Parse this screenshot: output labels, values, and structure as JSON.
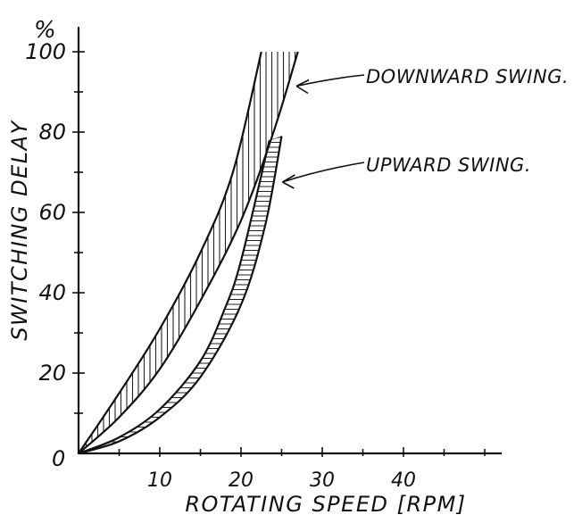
{
  "chart_data": {
    "type": "area",
    "xlabel": "ROTATING SPEED [RPM]",
    "ylabel": "SWITCHING DELAY",
    "y_unit": "%",
    "xlim": [
      0,
      50
    ],
    "ylim": [
      0,
      100
    ],
    "x_ticks": [
      10,
      20,
      30,
      40
    ],
    "y_ticks": [
      20,
      40,
      60,
      80,
      100
    ],
    "origin_label": "0",
    "grid": false,
    "series": [
      {
        "name": "DOWNWARD SWING",
        "hatch": "vertical",
        "upper": {
          "x": [
            0,
            5,
            10,
            15,
            19,
            22.5
          ],
          "y": [
            0,
            15,
            31,
            50,
            70,
            100
          ]
        },
        "lower": {
          "x": [
            0,
            5,
            10,
            15,
            20,
            24,
            27
          ],
          "y": [
            0,
            9,
            21,
            38,
            58,
            80,
            100
          ]
        }
      },
      {
        "name": "UPWARD SWING",
        "hatch": "horizontal",
        "upper": {
          "x": [
            0,
            5,
            10,
            15,
            18,
            20,
            23.5
          ],
          "y": [
            0,
            4,
            11,
            23,
            36,
            48,
            78
          ]
        },
        "lower": {
          "x": [
            0,
            5,
            10,
            15,
            20,
            23,
            25
          ],
          "y": [
            0,
            3,
            9,
            19,
            37,
            57,
            79
          ]
        }
      }
    ],
    "annotations": [
      {
        "text": "DOWNWARD SWING.",
        "points_to": {
          "x": 25.5,
          "y": 91
        }
      },
      {
        "text": "UPWARD SWING.",
        "points_to": {
          "x": 24,
          "y": 68
        }
      }
    ]
  }
}
